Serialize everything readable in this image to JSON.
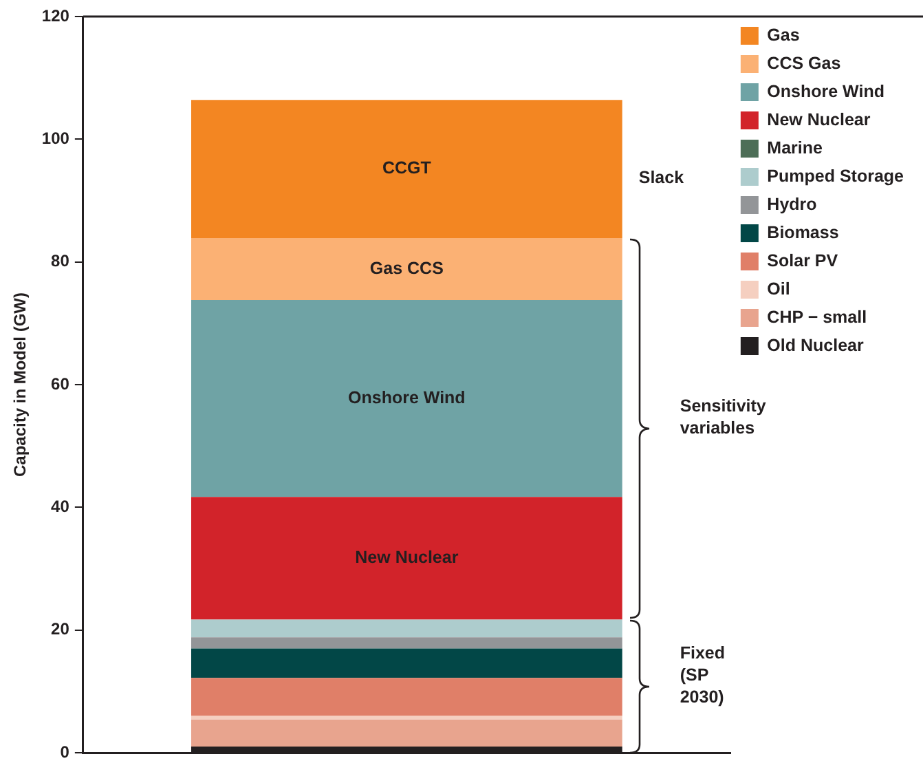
{
  "chart_data": {
    "type": "bar",
    "stacked": true,
    "ylabel": "Capacity in Model (GW)",
    "categories": [
      null
    ],
    "series": [
      {
        "name": "Old Nuclear",
        "color": "#231f20",
        "values": [
          1.0
        ]
      },
      {
        "name": "CHP − small",
        "color": "#e8a48e",
        "values": [
          4.4
        ]
      },
      {
        "name": "Oil",
        "color": "#f5cfc0",
        "values": [
          0.6
        ]
      },
      {
        "name": "Solar PV",
        "color": "#e07f68",
        "values": [
          6.2
        ]
      },
      {
        "name": "Biomass",
        "color": "#024747",
        "values": [
          4.8
        ]
      },
      {
        "name": "Hydro",
        "color": "#939598",
        "values": [
          1.8
        ]
      },
      {
        "name": "Pumped Storage",
        "color": "#adcccd",
        "values": [
          2.9
        ]
      },
      {
        "name": "Marine",
        "color": "#4d6e57",
        "values": [
          0
        ]
      },
      {
        "name": "New Nuclear",
        "color": "#d2232a",
        "values": [
          20.0
        ],
        "value_labels": [
          "New Nuclear"
        ]
      },
      {
        "name": "Onshore Wind",
        "color": "#6fa3a5",
        "values": [
          32.1
        ],
        "value_labels": [
          "Onshore Wind"
        ]
      },
      {
        "name": "CCS Gas",
        "color": "#fbb174",
        "values": [
          10.1
        ],
        "value_labels": [
          "Gas CCS"
        ]
      },
      {
        "name": "Gas",
        "color": "#f38622",
        "values": [
          22.5
        ],
        "value_labels": [
          "CCGT"
        ]
      }
    ],
    "ylim": [
      0,
      120
    ],
    "yticks": [
      0,
      20,
      40,
      60,
      80,
      100,
      120
    ],
    "tick_labels": "y",
    "legend": "top right",
    "annotations": [
      "Slack",
      "Sensitivity variables",
      "Fixed (SP 2030)"
    ]
  }
}
